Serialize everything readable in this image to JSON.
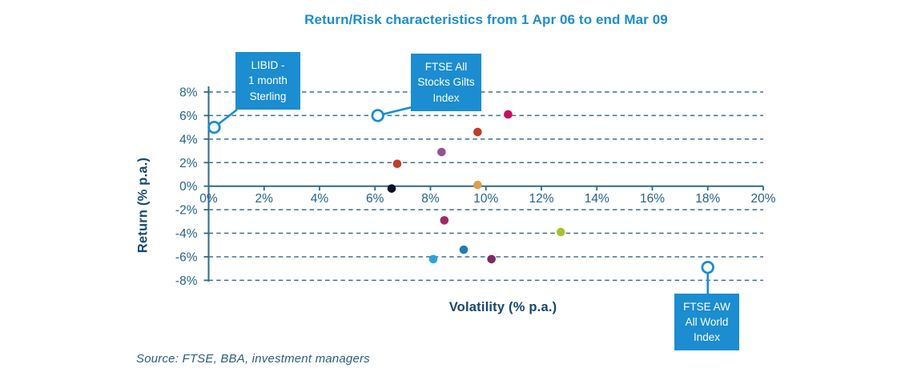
{
  "title": "Return/Risk characteristics from 1 Apr 06 to end Mar 09",
  "source": "Source: FTSE, BBA, investment managers",
  "colors": {
    "accent_blue": "#1b8dd0",
    "axis": "#2e6a8c",
    "grid": "#39708f",
    "tick_text": "#24648c",
    "label_dark": "#16486e",
    "source_text": "#2b5f80",
    "callout_text": "#ffffff"
  },
  "chart_data": {
    "type": "scatter",
    "title": "Return/Risk characteristics from 1 Apr 06 to end Mar 09",
    "xlabel": "Volatility (% p.a.)",
    "ylabel": "Return (% p.a.)",
    "xlim": [
      0,
      20
    ],
    "ylim": [
      -8,
      8
    ],
    "grid": "horizontal-dashed",
    "legend": "none",
    "x_ticks": [
      {
        "v": 0,
        "label": "0%"
      },
      {
        "v": 2,
        "label": "2%"
      },
      {
        "v": 4,
        "label": "4%"
      },
      {
        "v": 6,
        "label": "6%"
      },
      {
        "v": 8,
        "label": "8%"
      },
      {
        "v": 10,
        "label": "10%"
      },
      {
        "v": 12,
        "label": "12%"
      },
      {
        "v": 14,
        "label": "14%"
      },
      {
        "v": 16,
        "label": "16%"
      },
      {
        "v": 18,
        "label": "18%"
      },
      {
        "v": 20,
        "label": "20%"
      }
    ],
    "y_ticks": [
      {
        "v": 8,
        "label": "8%"
      },
      {
        "v": 6,
        "label": "6%"
      },
      {
        "v": 4,
        "label": "4%"
      },
      {
        "v": 2,
        "label": "2%"
      },
      {
        "v": 0,
        "label": "0%"
      },
      {
        "v": -2,
        "label": "-2%"
      },
      {
        "v": -4,
        "label": "-4%"
      },
      {
        "v": -6,
        "label": "-6%"
      },
      {
        "v": -8,
        "label": "-8%"
      }
    ],
    "benchmarks": [
      {
        "label": "LIBID -\n1 month\nSterling",
        "x": 0.2,
        "y": 5.0,
        "marker": "open-circle"
      },
      {
        "label": "FTSE All\nStocks Gilts\nIndex",
        "x": 6.1,
        "y": 6.0,
        "marker": "open-circle"
      },
      {
        "label": "FTSE AW\nAll World\nIndex",
        "x": 18.0,
        "y": -6.9,
        "marker": "open-circle"
      }
    ],
    "points": [
      {
        "x": 10.8,
        "y": 6.1,
        "color": "#c41162"
      },
      {
        "x": 9.7,
        "y": 4.6,
        "color": "#c23a28"
      },
      {
        "x": 8.4,
        "y": 2.9,
        "color": "#96538f"
      },
      {
        "x": 6.8,
        "y": 1.9,
        "color": "#c23a28"
      },
      {
        "x": 9.7,
        "y": 0.1,
        "color": "#dd9e4f"
      },
      {
        "x": 6.6,
        "y": -0.2,
        "color": "#0b1320"
      },
      {
        "x": 8.5,
        "y": -2.9,
        "color": "#9e2a63"
      },
      {
        "x": 12.7,
        "y": -3.9,
        "color": "#a6c32d"
      },
      {
        "x": 9.2,
        "y": -5.4,
        "color": "#1f7cb4"
      },
      {
        "x": 8.1,
        "y": -6.2,
        "color": "#29a3dc"
      },
      {
        "x": 10.2,
        "y": -6.2,
        "color": "#7e2a68"
      }
    ]
  }
}
